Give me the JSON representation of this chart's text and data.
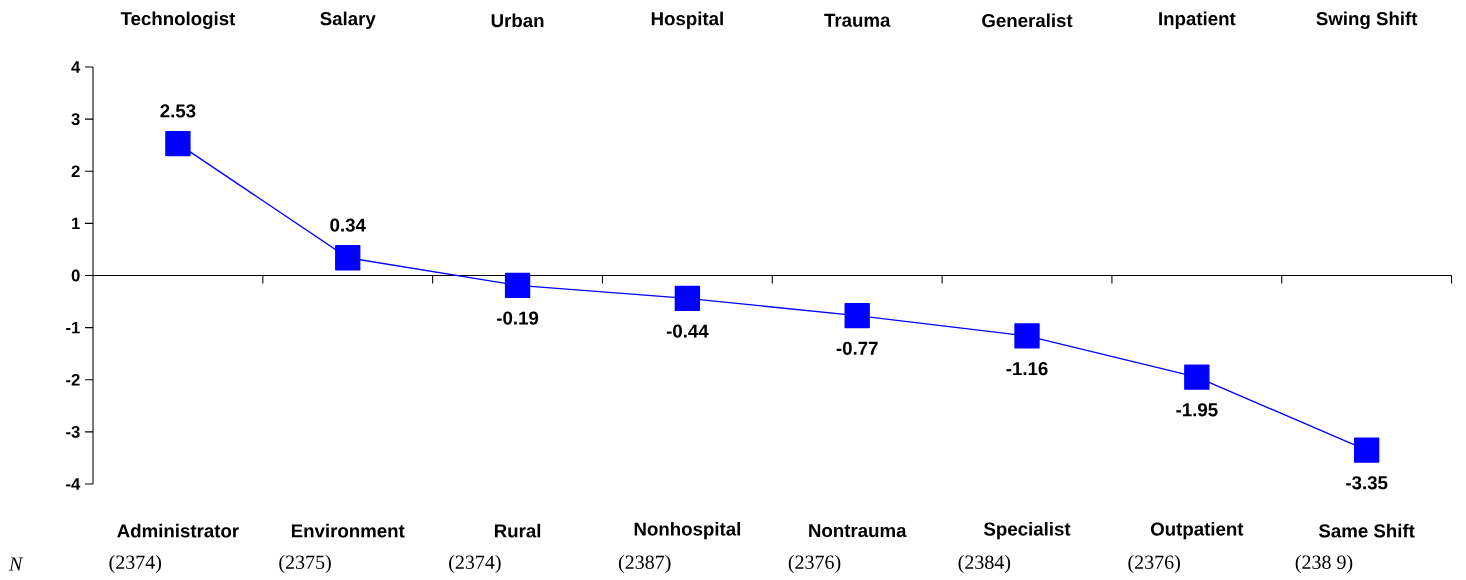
{
  "chart_data": {
    "type": "line",
    "categories": [
      "Administrator",
      "Environment",
      "Rural",
      "Nonhospital",
      "Nontrauma",
      "Specialist",
      "Outpatient",
      "Same Shift"
    ],
    "values": [
      2.53,
      0.34,
      -0.19,
      -0.44,
      -0.77,
      -1.16,
      -1.95,
      -3.35
    ],
    "color": "#0000ff",
    "marker": "square",
    "line_style": "solid",
    "data_labels": true,
    "ylim": [
      -4,
      4
    ],
    "yticks": [
      -4,
      -3,
      -2,
      -1,
      0,
      1,
      2,
      3,
      4
    ],
    "annotations": [
      "Technologist",
      "Salary",
      "Urban",
      "Hospital",
      "Trauma",
      "Generalist",
      "Inpatient",
      "Swing Shift",
      "N",
      "(2374)",
      "(2375)",
      "(2374)",
      "(2387)",
      "(2376)",
      "(2384)",
      "(2376)",
      "(238 9)"
    ]
  }
}
